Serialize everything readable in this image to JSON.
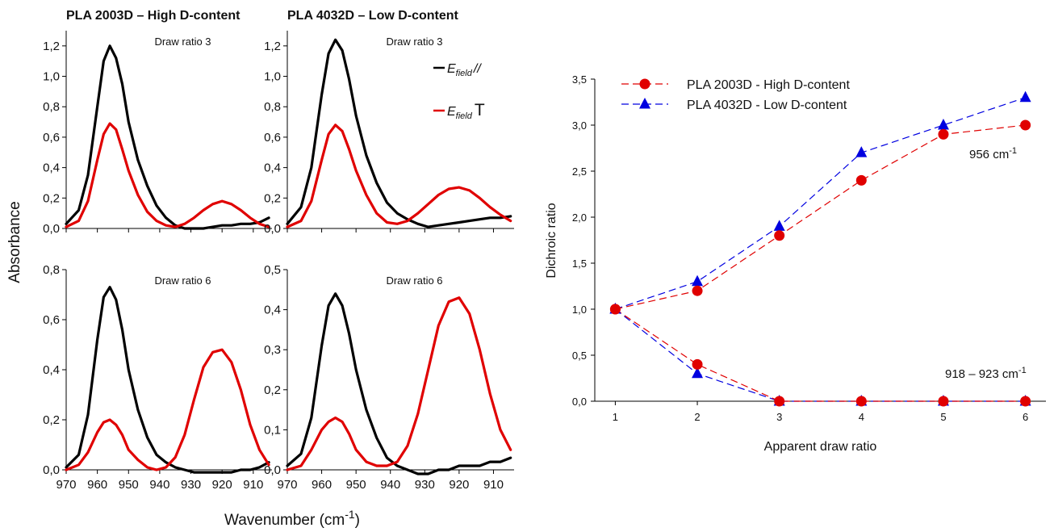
{
  "figure": {
    "left_titles": [
      "PLA 2003D – High D-content",
      "PLA 4032D – Low D-content"
    ],
    "ylabel_left": "Absorbance",
    "xlabel_left_main": "Wavenumber (cm",
    "xlabel_left_sup": "-1",
    "xlabel_left_close": ")",
    "legend_left": [
      {
        "prefix": "E",
        "sub": "field",
        "symbol": "//",
        "color": "#000000"
      },
      {
        "prefix": "E",
        "sub": "field",
        "symbol": "T",
        "color": "#e00000"
      }
    ]
  },
  "chart_data": [
    {
      "type": "line",
      "panel": "top-left",
      "annotation": "Draw ratio 3",
      "xlim": [
        970,
        904
      ],
      "ylim": [
        0,
        1.3
      ],
      "xticks": [
        "970",
        "960",
        "950",
        "940",
        "930",
        "920",
        "910"
      ],
      "yticks": [
        "0,0",
        "0,2",
        "0,4",
        "0,6",
        "0,8",
        "1,0",
        "1,2"
      ],
      "series": [
        {
          "color": "#000000",
          "x": [
            970,
            966,
            963,
            960,
            958,
            956,
            954,
            952,
            950,
            947,
            944,
            941,
            938,
            935,
            932,
            929,
            926,
            923,
            920,
            917,
            914,
            911,
            908,
            905
          ],
          "y": [
            0.03,
            0.12,
            0.35,
            0.8,
            1.1,
            1.2,
            1.12,
            0.95,
            0.7,
            0.45,
            0.28,
            0.15,
            0.07,
            0.02,
            0.0,
            0.0,
            0.0,
            0.01,
            0.02,
            0.02,
            0.03,
            0.03,
            0.04,
            0.07
          ]
        },
        {
          "color": "#e00000",
          "x": [
            970,
            966,
            963,
            960,
            958,
            956,
            954,
            952,
            950,
            947,
            944,
            941,
            938,
            935,
            932,
            929,
            926,
            923,
            920,
            917,
            914,
            911,
            908,
            905
          ],
          "y": [
            0.01,
            0.05,
            0.18,
            0.45,
            0.62,
            0.69,
            0.65,
            0.52,
            0.38,
            0.22,
            0.11,
            0.05,
            0.02,
            0.01,
            0.03,
            0.07,
            0.12,
            0.16,
            0.18,
            0.16,
            0.12,
            0.07,
            0.03,
            0.01
          ]
        }
      ]
    },
    {
      "type": "line",
      "panel": "top-right",
      "annotation": "Draw ratio 3",
      "xlim": [
        970,
        904
      ],
      "ylim": [
        0,
        1.3
      ],
      "xticks": [
        "970",
        "960",
        "950",
        "940",
        "930",
        "920",
        "910"
      ],
      "yticks": [
        "0,0",
        "0,2",
        "0,4",
        "0,6",
        "0,8",
        "1,0",
        "1,2"
      ],
      "series": [
        {
          "color": "#000000",
          "x": [
            970,
            966,
            963,
            960,
            958,
            956,
            954,
            952,
            950,
            947,
            944,
            941,
            938,
            935,
            932,
            929,
            926,
            923,
            920,
            917,
            914,
            911,
            908,
            905
          ],
          "y": [
            0.03,
            0.14,
            0.4,
            0.88,
            1.15,
            1.24,
            1.17,
            0.98,
            0.74,
            0.48,
            0.3,
            0.17,
            0.1,
            0.06,
            0.03,
            0.01,
            0.02,
            0.03,
            0.04,
            0.05,
            0.06,
            0.07,
            0.07,
            0.08
          ]
        },
        {
          "color": "#e00000",
          "x": [
            970,
            966,
            963,
            960,
            958,
            956,
            954,
            952,
            950,
            947,
            944,
            941,
            938,
            935,
            932,
            929,
            926,
            923,
            920,
            917,
            914,
            911,
            908,
            905
          ],
          "y": [
            0.01,
            0.05,
            0.18,
            0.45,
            0.62,
            0.68,
            0.64,
            0.52,
            0.38,
            0.22,
            0.1,
            0.04,
            0.03,
            0.05,
            0.1,
            0.16,
            0.22,
            0.26,
            0.27,
            0.25,
            0.2,
            0.14,
            0.09,
            0.05
          ]
        }
      ]
    },
    {
      "type": "line",
      "panel": "bottom-left",
      "annotation": "Draw ratio 6",
      "xlim": [
        970,
        904
      ],
      "ylim": [
        0,
        0.8
      ],
      "xticks": [
        "970",
        "960",
        "950",
        "940",
        "930",
        "920",
        "910"
      ],
      "yticks": [
        "0,0",
        "0,2",
        "0,4",
        "0,6",
        "0,8"
      ],
      "series": [
        {
          "color": "#000000",
          "x": [
            970,
            966,
            963,
            960,
            958,
            956,
            954,
            952,
            950,
            947,
            944,
            941,
            938,
            935,
            932,
            929,
            926,
            923,
            920,
            917,
            914,
            911,
            908,
            905
          ],
          "y": [
            0.01,
            0.06,
            0.22,
            0.52,
            0.69,
            0.73,
            0.68,
            0.56,
            0.4,
            0.24,
            0.13,
            0.06,
            0.03,
            0.01,
            0.0,
            -0.01,
            -0.01,
            -0.01,
            -0.01,
            -0.01,
            0.0,
            0.0,
            0.01,
            0.03
          ]
        },
        {
          "color": "#e00000",
          "x": [
            970,
            966,
            963,
            960,
            958,
            956,
            954,
            952,
            950,
            947,
            944,
            941,
            938,
            935,
            932,
            929,
            926,
            923,
            920,
            917,
            914,
            911,
            908,
            905
          ],
          "y": [
            0.0,
            0.02,
            0.07,
            0.15,
            0.19,
            0.2,
            0.18,
            0.14,
            0.08,
            0.04,
            0.01,
            0.0,
            0.01,
            0.05,
            0.14,
            0.28,
            0.41,
            0.47,
            0.48,
            0.43,
            0.32,
            0.18,
            0.08,
            0.02
          ]
        }
      ]
    },
    {
      "type": "line",
      "panel": "bottom-right",
      "annotation": "Draw ratio 6",
      "xlim": [
        970,
        904
      ],
      "ylim": [
        0,
        0.5
      ],
      "xticks": [
        "970",
        "960",
        "950",
        "940",
        "930",
        "920",
        "910"
      ],
      "yticks": [
        "0,0",
        "0,1",
        "0,2",
        "0,3",
        "0,4",
        "0,5"
      ],
      "series": [
        {
          "color": "#000000",
          "x": [
            970,
            966,
            963,
            960,
            958,
            956,
            954,
            952,
            950,
            947,
            944,
            941,
            938,
            935,
            932,
            929,
            926,
            923,
            920,
            917,
            914,
            911,
            908,
            905
          ],
          "y": [
            0.01,
            0.04,
            0.13,
            0.31,
            0.41,
            0.44,
            0.41,
            0.34,
            0.25,
            0.15,
            0.08,
            0.03,
            0.01,
            0.0,
            -0.01,
            -0.01,
            0.0,
            0.0,
            0.01,
            0.01,
            0.01,
            0.02,
            0.02,
            0.03
          ]
        },
        {
          "color": "#e00000",
          "x": [
            970,
            966,
            963,
            960,
            958,
            956,
            954,
            952,
            950,
            947,
            944,
            941,
            938,
            935,
            932,
            929,
            926,
            923,
            920,
            917,
            914,
            911,
            908,
            905
          ],
          "y": [
            0.0,
            0.01,
            0.05,
            0.1,
            0.12,
            0.13,
            0.12,
            0.09,
            0.05,
            0.02,
            0.01,
            0.01,
            0.02,
            0.06,
            0.14,
            0.25,
            0.36,
            0.42,
            0.43,
            0.39,
            0.3,
            0.19,
            0.1,
            0.05
          ]
        }
      ]
    },
    {
      "type": "line",
      "panel": "right",
      "xlabel": "Apparent draw ratio",
      "ylabel": "Dichroic ratio",
      "xlim": [
        0.75,
        6.25
      ],
      "ylim": [
        0,
        3.5
      ],
      "xticks": [
        "1",
        "2",
        "3",
        "4",
        "5",
        "6"
      ],
      "yticks": [
        "0,0",
        "0,5",
        "1,0",
        "1,5",
        "2,0",
        "2,5",
        "3,0",
        "3,5"
      ],
      "legend": "top-left",
      "annotations": [
        {
          "text": "956 cm",
          "sup": "-1"
        },
        {
          "text": "918 – 923 cm",
          "sup": "-1"
        }
      ],
      "x": [
        1,
        2,
        3,
        4,
        5,
        6
      ],
      "series": [
        {
          "name": "PLA 2003D - High D-content",
          "color": "#e00000",
          "marker": "circle",
          "values": [
            1.0,
            1.2,
            1.8,
            2.4,
            2.9,
            3.0
          ]
        },
        {
          "name": "PLA 4032D - Low D-content",
          "color": "#0000e0",
          "marker": "triangle",
          "values": [
            1.0,
            1.3,
            1.9,
            2.7,
            3.0,
            3.3
          ]
        },
        {
          "color": "#e00000",
          "marker": "circle",
          "values": [
            1.0,
            0.4,
            0.0,
            0.0,
            0.0,
            0.0
          ]
        },
        {
          "color": "#0000e0",
          "marker": "triangle",
          "values": [
            1.0,
            0.3,
            0.0,
            0.0,
            0.0,
            0.0
          ]
        }
      ]
    }
  ]
}
